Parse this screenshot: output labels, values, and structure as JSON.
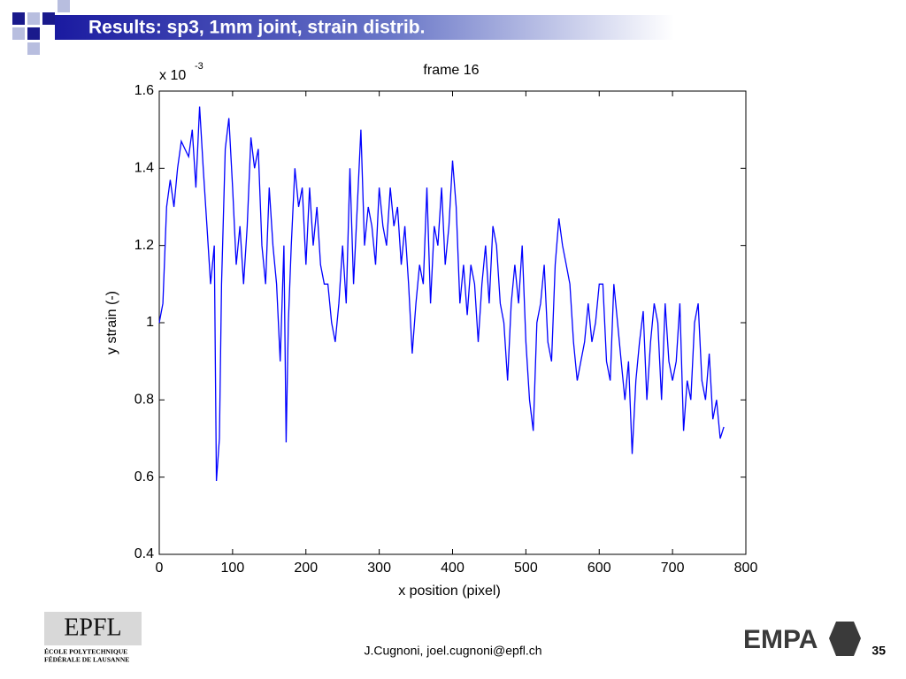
{
  "title": "Results: sp3, 1mm joint, strain distrib.",
  "footer": {
    "author": "J.Cugnoni, joel.cugnoni@epfl.ch",
    "page": "35"
  },
  "logos": {
    "epfl": "EPFL",
    "epfl_line1": "ÉCOLE  POLYTECHNIQUE",
    "epfl_line2": "FÉDÉRALE DE LAUSANNE",
    "empa": "EMPA"
  },
  "chart_data": {
    "type": "line",
    "title": "frame 16",
    "xlabel": "x position (pixel)",
    "ylabel": "y strain (-)",
    "y_multiplier": {
      "base": "x 10",
      "exponent": "-3"
    },
    "color": "#0000ff",
    "xlim": [
      0,
      800
    ],
    "xticks": [
      0,
      100,
      200,
      300,
      400,
      500,
      600,
      700,
      800
    ],
    "ylim": [
      0.4,
      1.6
    ],
    "yticks": [
      0.4,
      0.6,
      0.8,
      1,
      1.2,
      1.4,
      1.6
    ],
    "x": [
      0,
      5,
      10,
      15,
      20,
      25,
      30,
      35,
      40,
      45,
      50,
      55,
      60,
      65,
      70,
      75,
      78,
      82,
      85,
      90,
      95,
      100,
      105,
      110,
      115,
      120,
      125,
      130,
      135,
      140,
      145,
      150,
      155,
      160,
      165,
      170,
      173,
      176,
      180,
      185,
      190,
      195,
      200,
      205,
      210,
      215,
      220,
      225,
      230,
      235,
      240,
      245,
      250,
      255,
      260,
      265,
      270,
      275,
      280,
      285,
      290,
      295,
      300,
      305,
      310,
      315,
      320,
      325,
      330,
      335,
      340,
      345,
      350,
      355,
      360,
      365,
      370,
      375,
      380,
      385,
      390,
      395,
      400,
      405,
      410,
      415,
      420,
      425,
      430,
      435,
      440,
      445,
      450,
      455,
      460,
      465,
      470,
      475,
      480,
      485,
      490,
      495,
      500,
      505,
      510,
      515,
      520,
      525,
      530,
      535,
      540,
      545,
      550,
      555,
      560,
      565,
      570,
      575,
      580,
      585,
      590,
      595,
      600,
      605,
      610,
      615,
      620,
      625,
      630,
      635,
      640,
      645,
      650,
      655,
      660,
      665,
      670,
      675,
      680,
      685,
      690,
      695,
      700,
      705,
      710,
      715,
      720,
      725,
      730,
      735,
      740,
      745,
      750,
      755,
      760,
      765,
      770
    ],
    "values": [
      1.0,
      1.05,
      1.3,
      1.37,
      1.3,
      1.4,
      1.47,
      1.45,
      1.43,
      1.5,
      1.35,
      1.56,
      1.4,
      1.25,
      1.1,
      1.2,
      0.59,
      0.7,
      1.1,
      1.45,
      1.53,
      1.35,
      1.15,
      1.25,
      1.1,
      1.25,
      1.48,
      1.4,
      1.45,
      1.2,
      1.1,
      1.35,
      1.2,
      1.1,
      0.9,
      1.2,
      0.69,
      1.0,
      1.2,
      1.4,
      1.3,
      1.35,
      1.15,
      1.35,
      1.2,
      1.3,
      1.15,
      1.1,
      1.1,
      1.0,
      0.95,
      1.05,
      1.2,
      1.05,
      1.4,
      1.1,
      1.3,
      1.5,
      1.2,
      1.3,
      1.25,
      1.15,
      1.35,
      1.25,
      1.2,
      1.35,
      1.25,
      1.3,
      1.15,
      1.25,
      1.1,
      0.92,
      1.05,
      1.15,
      1.1,
      1.35,
      1.05,
      1.25,
      1.2,
      1.35,
      1.15,
      1.25,
      1.42,
      1.3,
      1.05,
      1.15,
      1.02,
      1.15,
      1.1,
      0.95,
      1.1,
      1.2,
      1.05,
      1.25,
      1.2,
      1.05,
      1.0,
      0.85,
      1.05,
      1.15,
      1.05,
      1.2,
      0.95,
      0.8,
      0.72,
      1.0,
      1.05,
      1.15,
      0.95,
      0.9,
      1.15,
      1.27,
      1.2,
      1.15,
      1.1,
      0.95,
      0.85,
      0.9,
      0.95,
      1.05,
      0.95,
      1.0,
      1.1,
      1.1,
      0.9,
      0.85,
      1.1,
      1.0,
      0.9,
      0.8,
      0.9,
      0.66,
      0.85,
      0.95,
      1.03,
      0.8,
      0.95,
      1.05,
      1.0,
      0.8,
      1.05,
      0.9,
      0.85,
      0.9,
      1.05,
      0.72,
      0.85,
      0.8,
      1.0,
      1.05,
      0.85,
      0.8,
      0.92,
      0.75,
      0.8,
      0.7,
      0.73
    ]
  }
}
